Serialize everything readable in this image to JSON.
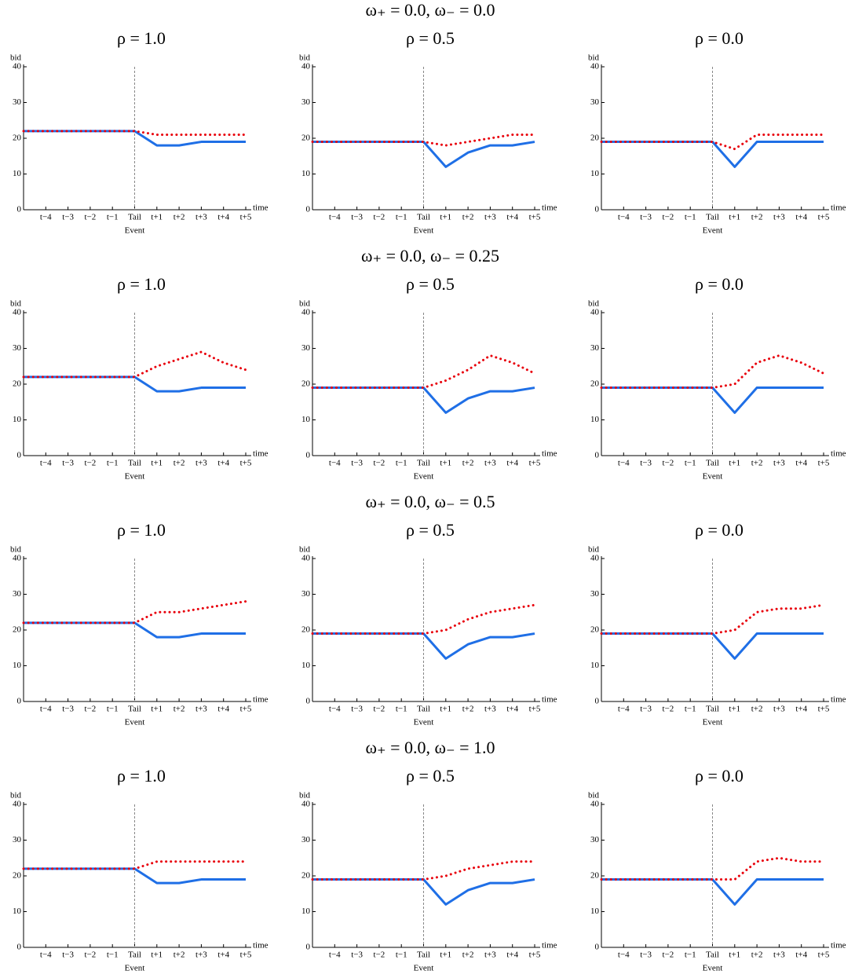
{
  "row_titles": [
    "ω₊ = 0.0, ω₋ = 0.0",
    "ω₊ = 0.0, ω₋ = 0.25",
    "ω₊ = 0.0, ω₋ = 0.5",
    "ω₊ = 0.0, ω₋ = 1.0"
  ],
  "chart_data": [
    {
      "type": "line",
      "title": "ρ = 1.0",
      "ylabel": "bid",
      "xlabel": "time",
      "event_label": "Event",
      "categories": [
        null,
        "t−4",
        "t−3",
        "t−2",
        "t−1",
        "Tail",
        "t+1",
        "t+2",
        "t+3",
        "t+4",
        "t+5"
      ],
      "event_index": 5,
      "ylim": [
        0,
        40
      ],
      "yticks": [
        0,
        10,
        20,
        30,
        40
      ],
      "series": [
        {
          "color": "#1f6fe6",
          "style": "solid",
          "values": [
            22,
            22,
            22,
            22,
            22,
            22,
            18,
            18,
            19,
            19,
            19
          ]
        },
        {
          "color": "#e8000b",
          "style": "dotted",
          "values": [
            22,
            22,
            22,
            22,
            22,
            22,
            21,
            21,
            21,
            21,
            21
          ]
        }
      ]
    },
    {
      "type": "line",
      "title": "ρ = 0.5",
      "ylabel": "bid",
      "xlabel": "time",
      "event_label": "Event",
      "categories": [
        null,
        "t−4",
        "t−3",
        "t−2",
        "t−1",
        "Tail",
        "t+1",
        "t+2",
        "t+3",
        "t+4",
        "t+5"
      ],
      "event_index": 5,
      "ylim": [
        0,
        40
      ],
      "yticks": [
        0,
        10,
        20,
        30,
        40
      ],
      "series": [
        {
          "color": "#1f6fe6",
          "style": "solid",
          "values": [
            19,
            19,
            19,
            19,
            19,
            19,
            12,
            16,
            18,
            18,
            19
          ]
        },
        {
          "color": "#e8000b",
          "style": "dotted",
          "values": [
            19,
            19,
            19,
            19,
            19,
            19,
            18,
            19,
            20,
            21,
            21
          ]
        }
      ]
    },
    {
      "type": "line",
      "title": "ρ = 0.0",
      "ylabel": "bid",
      "xlabel": "time",
      "event_label": "Event",
      "categories": [
        null,
        "t−4",
        "t−3",
        "t−2",
        "t−1",
        "Tail",
        "t+1",
        "t+2",
        "t+3",
        "t+4",
        "t+5"
      ],
      "event_index": 5,
      "ylim": [
        0,
        40
      ],
      "yticks": [
        0,
        10,
        20,
        30,
        40
      ],
      "series": [
        {
          "color": "#1f6fe6",
          "style": "solid",
          "values": [
            19,
            19,
            19,
            19,
            19,
            19,
            12,
            19,
            19,
            19,
            19
          ]
        },
        {
          "color": "#e8000b",
          "style": "dotted",
          "values": [
            19,
            19,
            19,
            19,
            19,
            19,
            17,
            21,
            21,
            21,
            21
          ]
        }
      ]
    },
    {
      "type": "line",
      "title": "ρ = 1.0",
      "ylabel": "bid",
      "xlabel": "time",
      "event_label": "Event",
      "categories": [
        null,
        "t−4",
        "t−3",
        "t−2",
        "t−1",
        "Tail",
        "t+1",
        "t+2",
        "t+3",
        "t+4",
        "t+5"
      ],
      "event_index": 5,
      "ylim": [
        0,
        40
      ],
      "yticks": [
        0,
        10,
        20,
        30,
        40
      ],
      "series": [
        {
          "color": "#1f6fe6",
          "style": "solid",
          "values": [
            22,
            22,
            22,
            22,
            22,
            22,
            18,
            18,
            19,
            19,
            19
          ]
        },
        {
          "color": "#e8000b",
          "style": "dotted",
          "values": [
            22,
            22,
            22,
            22,
            22,
            22,
            25,
            27,
            29,
            26,
            24
          ]
        }
      ]
    },
    {
      "type": "line",
      "title": "ρ = 0.5",
      "ylabel": "bid",
      "xlabel": "time",
      "event_label": "Event",
      "categories": [
        null,
        "t−4",
        "t−3",
        "t−2",
        "t−1",
        "Tail",
        "t+1",
        "t+2",
        "t+3",
        "t+4",
        "t+5"
      ],
      "event_index": 5,
      "ylim": [
        0,
        40
      ],
      "yticks": [
        0,
        10,
        20,
        30,
        40
      ],
      "series": [
        {
          "color": "#1f6fe6",
          "style": "solid",
          "values": [
            19,
            19,
            19,
            19,
            19,
            19,
            12,
            16,
            18,
            18,
            19
          ]
        },
        {
          "color": "#e8000b",
          "style": "dotted",
          "values": [
            19,
            19,
            19,
            19,
            19,
            19,
            21,
            24,
            28,
            26,
            23
          ]
        }
      ]
    },
    {
      "type": "line",
      "title": "ρ = 0.0",
      "ylabel": "bid",
      "xlabel": "time",
      "event_label": "Event",
      "categories": [
        null,
        "t−4",
        "t−3",
        "t−2",
        "t−1",
        "Tail",
        "t+1",
        "t+2",
        "t+3",
        "t+4",
        "t+5"
      ],
      "event_index": 5,
      "ylim": [
        0,
        40
      ],
      "yticks": [
        0,
        10,
        20,
        30,
        40
      ],
      "series": [
        {
          "color": "#1f6fe6",
          "style": "solid",
          "values": [
            19,
            19,
            19,
            19,
            19,
            19,
            12,
            19,
            19,
            19,
            19
          ]
        },
        {
          "color": "#e8000b",
          "style": "dotted",
          "values": [
            19,
            19,
            19,
            19,
            19,
            19,
            20,
            26,
            28,
            26,
            23
          ]
        }
      ]
    },
    {
      "type": "line",
      "title": "ρ = 1.0",
      "ylabel": "bid",
      "xlabel": "time",
      "event_label": "Event",
      "categories": [
        null,
        "t−4",
        "t−3",
        "t−2",
        "t−1",
        "Tail",
        "t+1",
        "t+2",
        "t+3",
        "t+4",
        "t+5"
      ],
      "event_index": 5,
      "ylim": [
        0,
        40
      ],
      "yticks": [
        0,
        10,
        20,
        30,
        40
      ],
      "series": [
        {
          "color": "#1f6fe6",
          "style": "solid",
          "values": [
            22,
            22,
            22,
            22,
            22,
            22,
            18,
            18,
            19,
            19,
            19
          ]
        },
        {
          "color": "#e8000b",
          "style": "dotted",
          "values": [
            22,
            22,
            22,
            22,
            22,
            22,
            25,
            25,
            26,
            27,
            28
          ]
        }
      ]
    },
    {
      "type": "line",
      "title": "ρ = 0.5",
      "ylabel": "bid",
      "xlabel": "time",
      "event_label": "Event",
      "categories": [
        null,
        "t−4",
        "t−3",
        "t−2",
        "t−1",
        "Tail",
        "t+1",
        "t+2",
        "t+3",
        "t+4",
        "t+5"
      ],
      "event_index": 5,
      "ylim": [
        0,
        40
      ],
      "yticks": [
        0,
        10,
        20,
        30,
        40
      ],
      "series": [
        {
          "color": "#1f6fe6",
          "style": "solid",
          "values": [
            19,
            19,
            19,
            19,
            19,
            19,
            12,
            16,
            18,
            18,
            19
          ]
        },
        {
          "color": "#e8000b",
          "style": "dotted",
          "values": [
            19,
            19,
            19,
            19,
            19,
            19,
            20,
            23,
            25,
            26,
            27
          ]
        }
      ]
    },
    {
      "type": "line",
      "title": "ρ = 0.0",
      "ylabel": "bid",
      "xlabel": "time",
      "event_label": "Event",
      "categories": [
        null,
        "t−4",
        "t−3",
        "t−2",
        "t−1",
        "Tail",
        "t+1",
        "t+2",
        "t+3",
        "t+4",
        "t+5"
      ],
      "event_index": 5,
      "ylim": [
        0,
        40
      ],
      "yticks": [
        0,
        10,
        20,
        30,
        40
      ],
      "series": [
        {
          "color": "#1f6fe6",
          "style": "solid",
          "values": [
            19,
            19,
            19,
            19,
            19,
            19,
            12,
            19,
            19,
            19,
            19
          ]
        },
        {
          "color": "#e8000b",
          "style": "dotted",
          "values": [
            19,
            19,
            19,
            19,
            19,
            19,
            20,
            25,
            26,
            26,
            27
          ]
        }
      ]
    },
    {
      "type": "line",
      "title": "ρ = 1.0",
      "ylabel": "bid",
      "xlabel": "time",
      "event_label": "Event",
      "categories": [
        null,
        "t−4",
        "t−3",
        "t−2",
        "t−1",
        "Tail",
        "t+1",
        "t+2",
        "t+3",
        "t+4",
        "t+5"
      ],
      "event_index": 5,
      "ylim": [
        0,
        40
      ],
      "yticks": [
        0,
        10,
        20,
        30,
        40
      ],
      "series": [
        {
          "color": "#1f6fe6",
          "style": "solid",
          "values": [
            22,
            22,
            22,
            22,
            22,
            22,
            18,
            18,
            19,
            19,
            19
          ]
        },
        {
          "color": "#e8000b",
          "style": "dotted",
          "values": [
            22,
            22,
            22,
            22,
            22,
            22,
            24,
            24,
            24,
            24,
            24
          ]
        }
      ]
    },
    {
      "type": "line",
      "title": "ρ = 0.5",
      "ylabel": "bid",
      "xlabel": "time",
      "event_label": "Event",
      "categories": [
        null,
        "t−4",
        "t−3",
        "t−2",
        "t−1",
        "Tail",
        "t+1",
        "t+2",
        "t+3",
        "t+4",
        "t+5"
      ],
      "event_index": 5,
      "ylim": [
        0,
        40
      ],
      "yticks": [
        0,
        10,
        20,
        30,
        40
      ],
      "series": [
        {
          "color": "#1f6fe6",
          "style": "solid",
          "values": [
            19,
            19,
            19,
            19,
            19,
            19,
            12,
            16,
            18,
            18,
            19
          ]
        },
        {
          "color": "#e8000b",
          "style": "dotted",
          "values": [
            19,
            19,
            19,
            19,
            19,
            19,
            20,
            22,
            23,
            24,
            24
          ]
        }
      ]
    },
    {
      "type": "line",
      "title": "ρ = 0.0",
      "ylabel": "bid",
      "xlabel": "time",
      "event_label": "Event",
      "categories": [
        null,
        "t−4",
        "t−3",
        "t−2",
        "t−1",
        "Tail",
        "t+1",
        "t+2",
        "t+3",
        "t+4",
        "t+5"
      ],
      "event_index": 5,
      "ylim": [
        0,
        40
      ],
      "yticks": [
        0,
        10,
        20,
        30,
        40
      ],
      "series": [
        {
          "color": "#1f6fe6",
          "style": "solid",
          "values": [
            19,
            19,
            19,
            19,
            19,
            19,
            12,
            19,
            19,
            19,
            19
          ]
        },
        {
          "color": "#e8000b",
          "style": "dotted",
          "values": [
            19,
            19,
            19,
            19,
            19,
            19,
            19,
            24,
            25,
            24,
            24
          ]
        }
      ]
    }
  ]
}
